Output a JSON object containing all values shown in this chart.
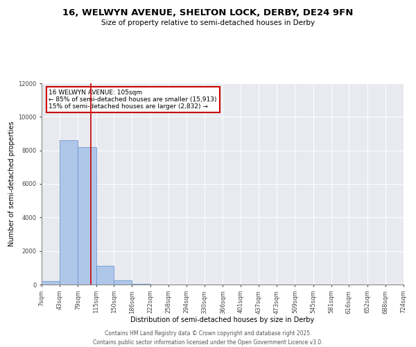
{
  "title_line1": "16, WELWYN AVENUE, SHELTON LOCK, DERBY, DE24 9FN",
  "title_line2": "Size of property relative to semi-detached houses in Derby",
  "xlabel": "Distribution of semi-detached houses by size in Derby",
  "ylabel": "Number of semi-detached properties",
  "background_color": "#e8eaf0",
  "bar_color": "#aec6e8",
  "bar_edge_color": "#5b8fc9",
  "annotation_line_color": "#cc0000",
  "annotation_box_color": "#cc0000",
  "property_size": 105,
  "property_label": "16 WELWYN AVENUE: 105sqm",
  "pct_smaller": 85,
  "count_smaller": 15913,
  "pct_larger": 15,
  "count_larger": 2832,
  "bin_edges": [
    7,
    43,
    79,
    115,
    150,
    186,
    222,
    258,
    294,
    330,
    366,
    401,
    437,
    473,
    509,
    545,
    581,
    616,
    652,
    688,
    724
  ],
  "bin_labels": [
    "7sqm",
    "43sqm",
    "79sqm",
    "115sqm",
    "150sqm",
    "186sqm",
    "222sqm",
    "258sqm",
    "294sqm",
    "330sqm",
    "366sqm",
    "401sqm",
    "437sqm",
    "473sqm",
    "509sqm",
    "545sqm",
    "581sqm",
    "616sqm",
    "652sqm",
    "688sqm",
    "724sqm"
  ],
  "counts": [
    200,
    8600,
    8200,
    1100,
    250,
    60,
    10,
    0,
    0,
    0,
    0,
    0,
    0,
    0,
    0,
    0,
    0,
    0,
    0,
    0
  ],
  "ylim": [
    0,
    12000
  ],
  "yticks": [
    0,
    2000,
    4000,
    6000,
    8000,
    10000,
    12000
  ],
  "footer_line1": "Contains HM Land Registry data © Crown copyright and database right 2025.",
  "footer_line2": "Contains public sector information licensed under the Open Government Licence v3.0.",
  "title_fontsize": 9.5,
  "subtitle_fontsize": 7.5,
  "axis_label_fontsize": 7,
  "tick_fontsize": 6,
  "annotation_fontsize": 6.5,
  "footer_fontsize": 5.5
}
